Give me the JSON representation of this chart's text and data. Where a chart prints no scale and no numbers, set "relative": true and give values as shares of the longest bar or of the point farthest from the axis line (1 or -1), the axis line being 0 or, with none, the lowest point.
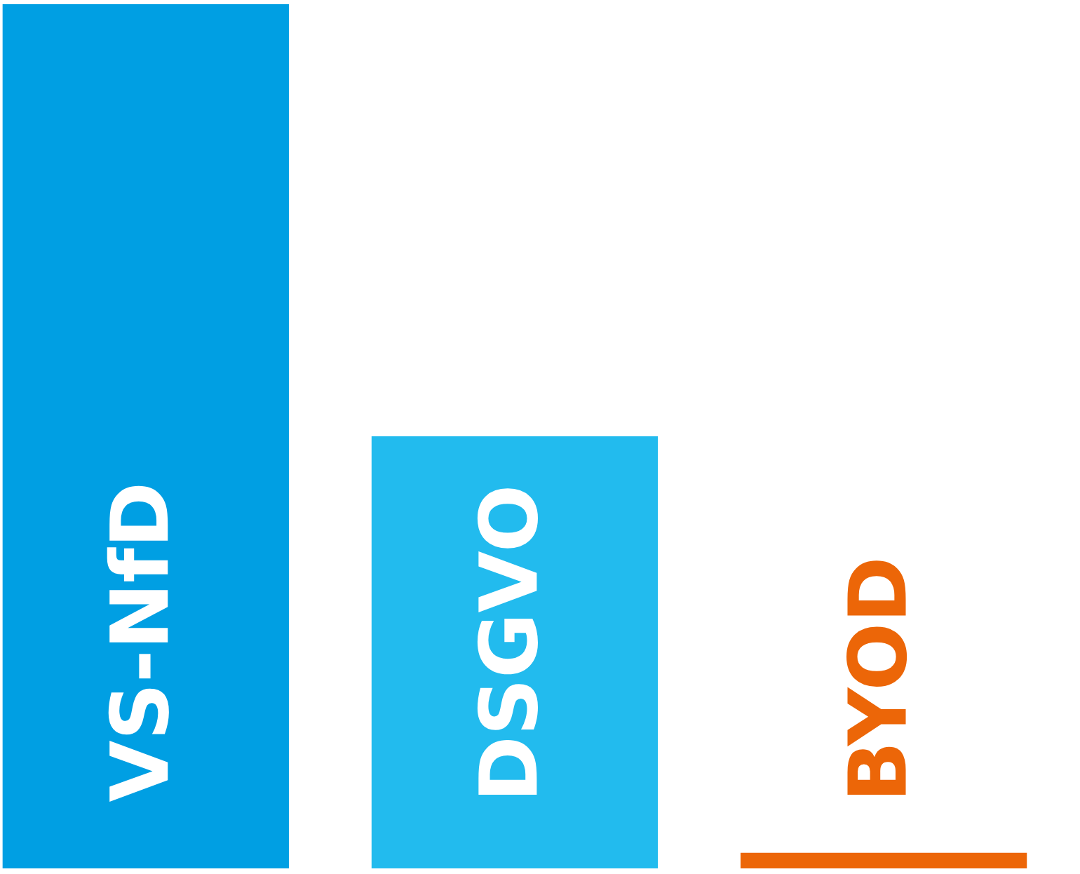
{
  "chart_data": {
    "type": "bar",
    "relative": true,
    "categories": [
      "VS-NfD",
      "DSGVO",
      "BYOD"
    ],
    "values": [
      1,
      0.5,
      0.018
    ],
    "colors": [
      "#009fe3",
      "#22bbee",
      "#ec6608"
    ]
  }
}
